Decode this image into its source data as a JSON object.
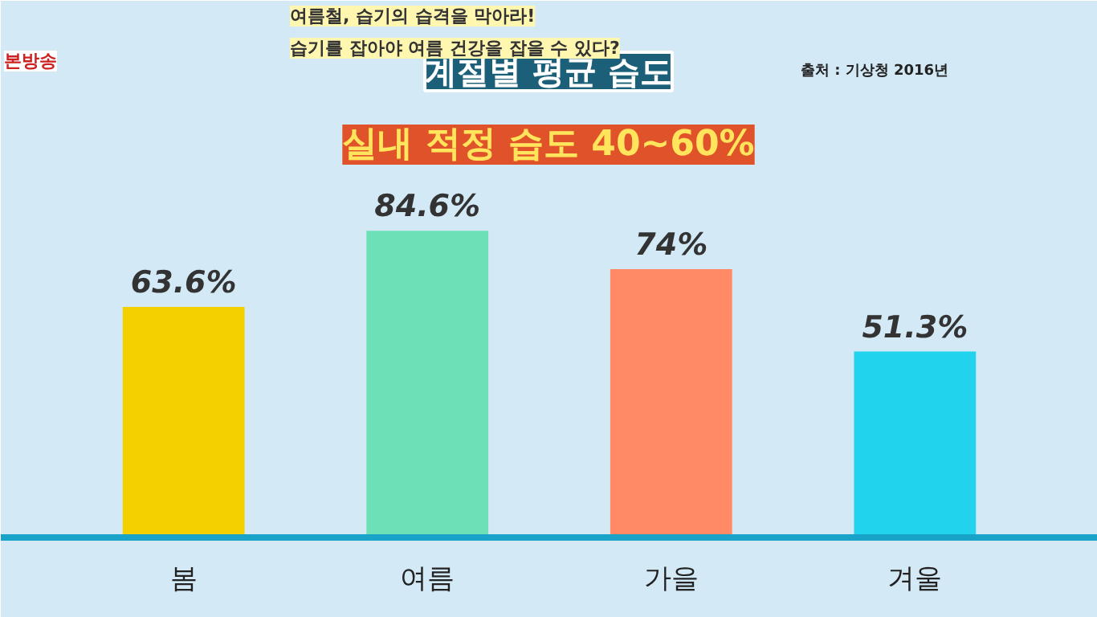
{
  "chart_data": {
    "type": "bar",
    "title": "계절별 평균 습도",
    "subtitle": "실내 적정 습도 40~60%",
    "categories": [
      "봄",
      "여름",
      "가을",
      "겨울"
    ],
    "values": [
      63.6,
      84.6,
      74,
      51.3
    ],
    "colors": [
      "#f5d000",
      "#6ee0b8",
      "#ff8a65",
      "#22d3ee"
    ],
    "value_labels": [
      "63.6%",
      "84.6%",
      "74%",
      "51.3%"
    ],
    "annotations": [
      "출처 : 기상청 2016년",
      "여름철, 습기의 습격을 막아라!",
      "습기를 잡아야 여름 건강을 잡을 수 있다?",
      "본방송"
    ],
    "grid": false
  }
}
